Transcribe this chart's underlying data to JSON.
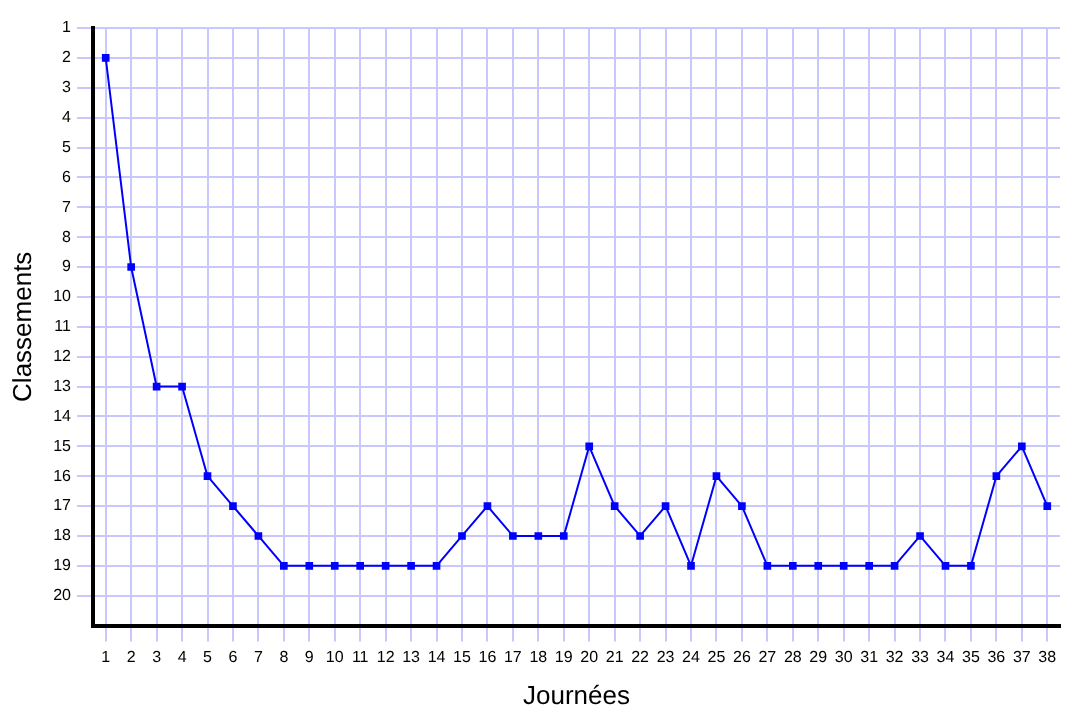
{
  "chart_data": {
    "type": "line",
    "xlabel": "Journées",
    "ylabel": "Classements",
    "x": [
      1,
      2,
      3,
      4,
      5,
      6,
      7,
      8,
      9,
      10,
      11,
      12,
      13,
      14,
      15,
      16,
      17,
      18,
      19,
      20,
      21,
      22,
      23,
      24,
      25,
      26,
      27,
      28,
      29,
      30,
      31,
      32,
      33,
      34,
      35,
      36,
      37,
      38
    ],
    "series": [
      {
        "color": "#0000ff",
        "values": [
          2,
          9,
          13,
          13,
          16,
          17,
          18,
          19,
          19,
          19,
          19,
          19,
          19,
          19,
          18,
          17,
          18,
          18,
          18,
          15,
          17,
          18,
          17,
          19,
          16,
          17,
          19,
          19,
          19,
          19,
          19,
          19,
          18,
          19,
          19,
          16,
          15,
          17
        ]
      }
    ],
    "xlim": [
      0.5,
      38.5
    ],
    "xticks": [
      1,
      2,
      3,
      4,
      5,
      6,
      7,
      8,
      9,
      10,
      11,
      12,
      13,
      14,
      15,
      16,
      17,
      18,
      19,
      20,
      21,
      22,
      23,
      24,
      25,
      26,
      27,
      28,
      29,
      30,
      31,
      32,
      33,
      34,
      35,
      36,
      37,
      38
    ],
    "ylim": [
      21,
      1
    ],
    "yticks": [
      1,
      2,
      3,
      4,
      5,
      6,
      7,
      8,
      9,
      10,
      11,
      12,
      13,
      14,
      15,
      16,
      17,
      18,
      19,
      20
    ],
    "grid": true,
    "legend": false,
    "marker": "square",
    "line_style": "solid"
  }
}
